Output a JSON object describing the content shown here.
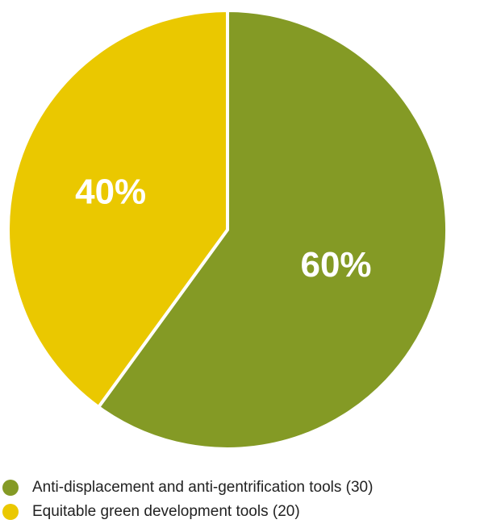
{
  "chart_data": {
    "type": "pie",
    "series": [
      {
        "name": "",
        "slices": [
          {
            "label": "Anti-displacement and anti-gentrification tools (30)",
            "value": 30,
            "percent_label": "60%",
            "color": "#849a25"
          },
          {
            "label": "Equitable green development tools (20)",
            "value": 20,
            "percent_label": "40%",
            "color": "#eac800"
          }
        ]
      }
    ],
    "legend_position": "bottom-left"
  }
}
